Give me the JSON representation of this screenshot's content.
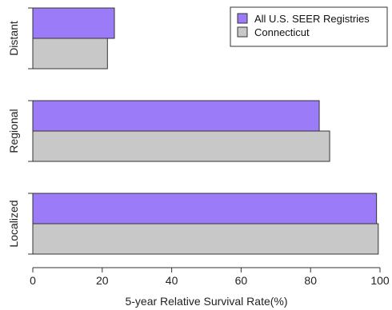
{
  "chart_data": {
    "type": "bar",
    "orientation": "horizontal",
    "categories": [
      "Distant",
      "Regional",
      "Localized"
    ],
    "series": [
      {
        "name": "All U.S. SEER Registries",
        "values": [
          23.5,
          82.5,
          99.0
        ],
        "color": "#9B7BF7"
      },
      {
        "name": "Connecticut",
        "values": [
          21.5,
          85.5,
          99.5
        ],
        "color": "#C8C8C8"
      }
    ],
    "xlabel": "5-year Relative Survival Rate(%)",
    "xlim": [
      0,
      100
    ],
    "xticks": [
      0,
      20,
      40,
      60,
      80,
      100
    ],
    "grid": false,
    "legend_position": "top-right",
    "bar_outline_color": "#333333",
    "axis_color": "#333333"
  }
}
